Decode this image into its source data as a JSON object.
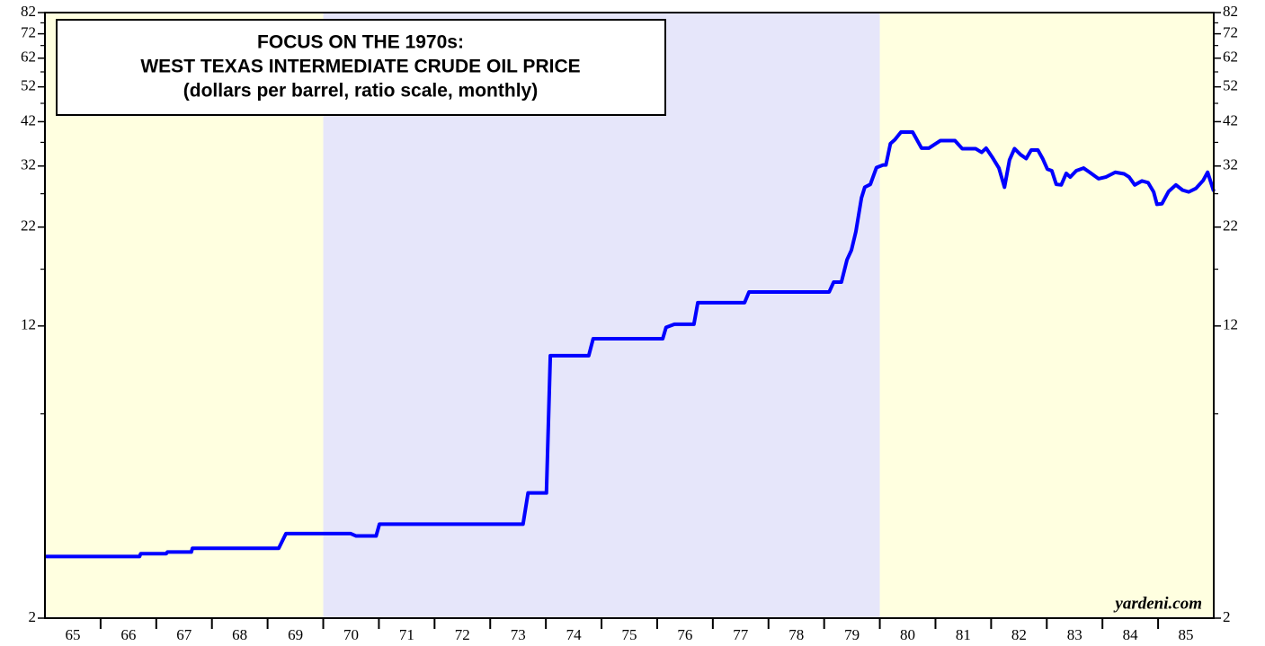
{
  "chart_data": {
    "type": "line",
    "title": [
      "FOCUS ON THE 1970s:",
      "WEST TEXAS INTERMEDIATE CRUDE OIL PRICE",
      "(dollars per barrel, ratio scale, monthly)"
    ],
    "annotation": "yardeni.com",
    "log_scale": true,
    "color": "#0000ff",
    "shaded_periods": [
      {
        "start": 1965,
        "end": 1970,
        "color": "#ffffe0"
      },
      {
        "start": 1970,
        "end": 1980,
        "color": "#e6e6fa"
      },
      {
        "start": 1980,
        "end": 1986,
        "color": "#ffffe0"
      }
    ],
    "xlim": [
      1965,
      1986
    ],
    "ylim": [
      2,
      82
    ],
    "yticks": [
      2,
      12,
      22,
      32,
      42,
      52,
      62,
      72,
      82
    ],
    "yminor_ticks": [
      7,
      17,
      27,
      37,
      47,
      57,
      67,
      77
    ],
    "xticks": [
      {
        "value": 1965.5,
        "label": "65"
      },
      {
        "value": 1966.5,
        "label": "66"
      },
      {
        "value": 1967.5,
        "label": "67"
      },
      {
        "value": 1968.5,
        "label": "68"
      },
      {
        "value": 1969.5,
        "label": "69"
      },
      {
        "value": 1970.5,
        "label": "70"
      },
      {
        "value": 1971.5,
        "label": "71"
      },
      {
        "value": 1972.5,
        "label": "72"
      },
      {
        "value": 1973.5,
        "label": "73"
      },
      {
        "value": 1974.5,
        "label": "74"
      },
      {
        "value": 1975.5,
        "label": "75"
      },
      {
        "value": 1976.5,
        "label": "76"
      },
      {
        "value": 1977.5,
        "label": "77"
      },
      {
        "value": 1978.5,
        "label": "78"
      },
      {
        "value": 1979.5,
        "label": "79"
      },
      {
        "value": 1980.5,
        "label": "80"
      },
      {
        "value": 1981.5,
        "label": "81"
      },
      {
        "value": 1982.5,
        "label": "82"
      },
      {
        "value": 1983.5,
        "label": "83"
      },
      {
        "value": 1984.5,
        "label": "84"
      },
      {
        "value": 1985.5,
        "label": "85"
      }
    ],
    "xminor_ticks": [
      1966,
      1967,
      1968,
      1969,
      1970,
      1971,
      1972,
      1973,
      1974,
      1975,
      1976,
      1977,
      1978,
      1979,
      1980,
      1981,
      1982,
      1983,
      1984,
      1985
    ],
    "x": [
      1965.0,
      1966.7,
      1966.72,
      1967.18,
      1967.2,
      1967.63,
      1967.65,
      1969.2,
      1969.33,
      1970.49,
      1970.59,
      1970.95,
      1971.01,
      1973.59,
      1973.68,
      1974.01,
      1974.08,
      1974.77,
      1974.85,
      1976.1,
      1976.16,
      1976.31,
      1976.66,
      1976.73,
      1977.57,
      1977.65,
      1979.09,
      1979.17,
      1979.31,
      1979.41,
      1979.49,
      1979.57,
      1979.67,
      1979.73,
      1979.83,
      1979.94,
      1980.06,
      1980.11,
      1980.19,
      1980.27,
      1980.38,
      1980.59,
      1980.75,
      1980.88,
      1981.09,
      1981.35,
      1981.48,
      1981.72,
      1981.83,
      1981.91,
      1982.03,
      1982.14,
      1982.24,
      1982.33,
      1982.42,
      1982.53,
      1982.63,
      1982.72,
      1982.84,
      1982.93,
      1983.01,
      1983.09,
      1983.17,
      1983.26,
      1983.35,
      1983.42,
      1983.53,
      1983.66,
      1983.77,
      1983.93,
      1984.06,
      1984.23,
      1984.39,
      1984.48,
      1984.58,
      1984.71,
      1984.82,
      1984.92,
      1984.98,
      1985.07,
      1985.19,
      1985.32,
      1985.44,
      1985.55,
      1985.68,
      1985.81,
      1985.89,
      1986.0
    ],
    "values": [
      2.92,
      2.92,
      2.97,
      2.97,
      3.0,
      3.0,
      3.07,
      3.07,
      3.36,
      3.36,
      3.31,
      3.31,
      3.56,
      3.56,
      4.31,
      4.31,
      10.0,
      10.0,
      11.1,
      11.1,
      11.9,
      12.13,
      12.13,
      13.84,
      13.84,
      14.78,
      14.78,
      15.7,
      15.7,
      18.0,
      19.1,
      21.4,
      26.3,
      28.1,
      28.6,
      31.7,
      32.2,
      32.2,
      36.7,
      37.6,
      39.4,
      39.4,
      35.7,
      35.7,
      37.4,
      37.4,
      35.6,
      35.6,
      34.8,
      35.7,
      33.6,
      31.6,
      28.1,
      33.2,
      35.6,
      34.3,
      33.5,
      35.3,
      35.3,
      33.4,
      31.4,
      31.1,
      28.6,
      28.5,
      30.6,
      29.9,
      31.1,
      31.6,
      30.8,
      29.6,
      29.9,
      30.8,
      30.5,
      29.9,
      28.5,
      29.2,
      28.9,
      27.3,
      25.3,
      25.4,
      27.4,
      28.5,
      27.6,
      27.3,
      27.9,
      29.3,
      30.8,
      27.4
    ]
  }
}
